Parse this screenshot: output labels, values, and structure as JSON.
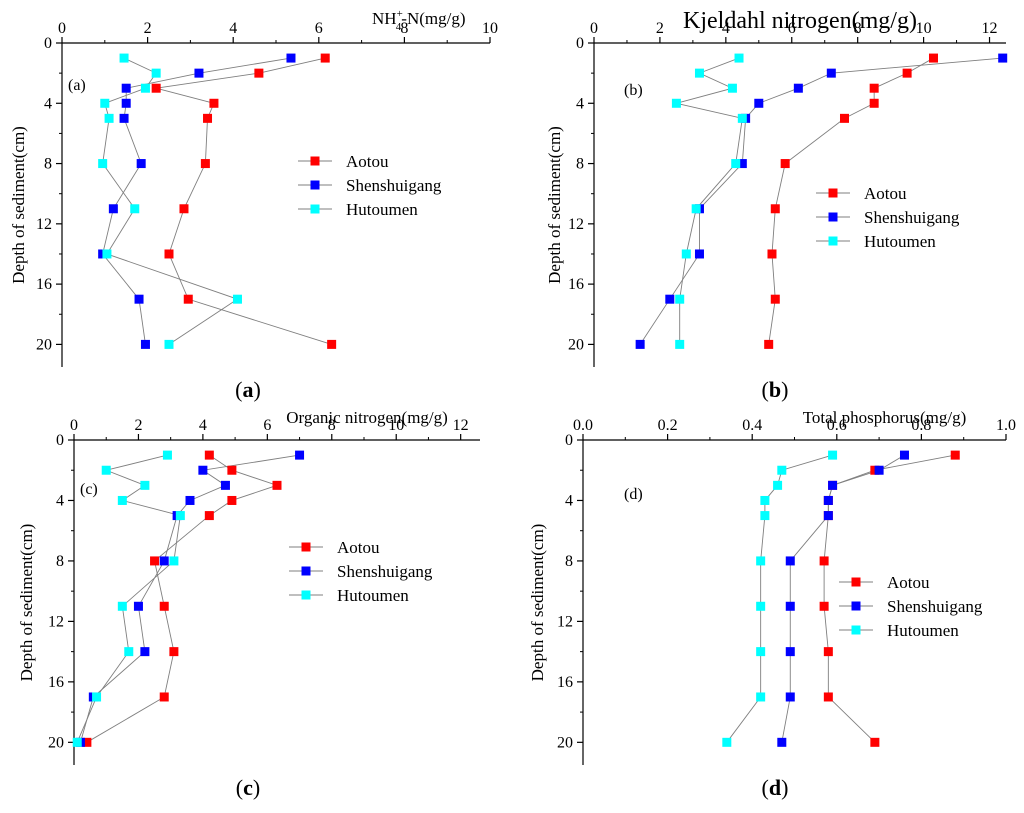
{
  "colors": {
    "Aotou": "#ff0000",
    "Shenshuigang": "#0000ff",
    "Hutoumen": "#00ffff",
    "axis": "#000000",
    "line": "#7f7f7f"
  },
  "chart_data": [
    {
      "type": "scatter",
      "panel": "a",
      "tag": "(a)",
      "caption": "a",
      "title_main": "NH",
      "title_sup": "+",
      "title_sub": "4",
      "title_rest": "-N(mg/g)",
      "xlabel": "",
      "ylabel": "Depth of sediment(cm)",
      "xlim": [
        0,
        10
      ],
      "ylim": [
        0,
        21.5
      ],
      "x_ticks": [
        0,
        2,
        4,
        6,
        8,
        10
      ],
      "y_ticks": [
        0,
        4,
        8,
        12,
        16,
        20
      ],
      "legend_position": "center-right",
      "series": [
        {
          "name": "Aotou",
          "points": [
            [
              6.15,
              1
            ],
            [
              4.6,
              2
            ],
            [
              2.2,
              3
            ],
            [
              3.55,
              4
            ],
            [
              3.4,
              5
            ],
            [
              3.35,
              8
            ],
            [
              2.85,
              11
            ],
            [
              2.5,
              14
            ],
            [
              2.95,
              17
            ],
            [
              6.3,
              20
            ]
          ]
        },
        {
          "name": "Shenshuigang",
          "points": [
            [
              5.35,
              1
            ],
            [
              3.2,
              2
            ],
            [
              1.5,
              3
            ],
            [
              1.5,
              4
            ],
            [
              1.45,
              5
            ],
            [
              1.85,
              8
            ],
            [
              1.2,
              11
            ],
            [
              0.95,
              14
            ],
            [
              1.8,
              17
            ],
            [
              1.95,
              20
            ]
          ]
        },
        {
          "name": "Hutoumen",
          "points": [
            [
              1.45,
              1
            ],
            [
              2.2,
              2
            ],
            [
              1.95,
              3
            ],
            [
              1.0,
              4
            ],
            [
              1.1,
              5
            ],
            [
              0.95,
              8
            ],
            [
              1.7,
              11
            ],
            [
              1.05,
              14
            ],
            [
              4.1,
              17
            ],
            [
              2.5,
              20
            ]
          ]
        }
      ]
    },
    {
      "type": "scatter",
      "panel": "b",
      "tag": "(b)",
      "caption": "b",
      "title_main": "Kjeldahl nitrogen(mg/g)",
      "xlabel": "",
      "ylabel": "Depth of sediment(cm)",
      "xlim": [
        0,
        12.5
      ],
      "ylim": [
        0,
        21.5
      ],
      "x_ticks": [
        0,
        2,
        4,
        6,
        8,
        10,
        12
      ],
      "y_ticks": [
        0,
        4,
        8,
        12,
        16,
        20
      ],
      "legend_position": "center-right",
      "series": [
        {
          "name": "Aotou",
          "points": [
            [
              10.3,
              1
            ],
            [
              9.5,
              2
            ],
            [
              8.5,
              3
            ],
            [
              8.5,
              4
            ],
            [
              7.6,
              5
            ],
            [
              5.8,
              8
            ],
            [
              5.5,
              11
            ],
            [
              5.4,
              14
            ],
            [
              5.5,
              17
            ],
            [
              5.3,
              20
            ]
          ]
        },
        {
          "name": "Shenshuigang",
          "points": [
            [
              12.4,
              1
            ],
            [
              7.2,
              2
            ],
            [
              6.2,
              3
            ],
            [
              5.0,
              4
            ],
            [
              4.6,
              5
            ],
            [
              4.5,
              8
            ],
            [
              3.2,
              11
            ],
            [
              3.2,
              14
            ],
            [
              2.3,
              17
            ],
            [
              1.4,
              20
            ]
          ]
        },
        {
          "name": "Hutoumen",
          "points": [
            [
              4.4,
              1
            ],
            [
              3.2,
              2
            ],
            [
              4.2,
              3
            ],
            [
              2.5,
              4
            ],
            [
              4.5,
              5
            ],
            [
              4.3,
              8
            ],
            [
              3.1,
              11
            ],
            [
              2.8,
              14
            ],
            [
              2.6,
              17
            ],
            [
              2.6,
              20
            ]
          ]
        }
      ]
    },
    {
      "type": "scatter",
      "panel": "c",
      "tag": "(c)",
      "caption": "c",
      "title_main": "Organic nitrogen(mg/g)",
      "xlabel": "",
      "ylabel": "Depth of sediment(cm)",
      "xlim": [
        0,
        12.6
      ],
      "ylim": [
        0,
        21.5
      ],
      "x_ticks": [
        0,
        2,
        4,
        6,
        8,
        10,
        12
      ],
      "y_ticks": [
        0,
        4,
        8,
        12,
        16,
        20
      ],
      "legend_position": "center-right",
      "series": [
        {
          "name": "Aotou",
          "points": [
            [
              4.2,
              1
            ],
            [
              4.9,
              2
            ],
            [
              6.3,
              3
            ],
            [
              4.9,
              4
            ],
            [
              4.2,
              5
            ],
            [
              2.5,
              8
            ],
            [
              2.8,
              11
            ],
            [
              3.1,
              14
            ],
            [
              2.8,
              17
            ],
            [
              0.4,
              20
            ]
          ]
        },
        {
          "name": "Shenshuigang",
          "points": [
            [
              7.0,
              1
            ],
            [
              4.0,
              2
            ],
            [
              4.7,
              3
            ],
            [
              3.6,
              4
            ],
            [
              3.2,
              5
            ],
            [
              2.8,
              8
            ],
            [
              2.0,
              11
            ],
            [
              2.2,
              14
            ],
            [
              0.6,
              17
            ],
            [
              0.2,
              20
            ]
          ]
        },
        {
          "name": "Hutoumen",
          "points": [
            [
              2.9,
              1
            ],
            [
              1.0,
              2
            ],
            [
              2.2,
              3
            ],
            [
              1.5,
              4
            ],
            [
              3.3,
              5
            ],
            [
              3.1,
              8
            ],
            [
              1.5,
              11
            ],
            [
              1.7,
              14
            ],
            [
              0.7,
              17
            ],
            [
              0.1,
              20
            ]
          ]
        }
      ]
    },
    {
      "type": "scatter",
      "panel": "d",
      "tag": "(d)",
      "caption": "d",
      "title_main": "Total phosphorus(mg/g)",
      "xlabel": "",
      "ylabel": "Depth of sediment(cm)",
      "xlim": [
        0,
        1.0
      ],
      "ylim": [
        0,
        21.5
      ],
      "x_ticks": [
        "0.0",
        "0.2",
        "0.4",
        "0.6",
        "0.8",
        "1.0"
      ],
      "y_ticks": [
        0,
        4,
        8,
        12,
        16,
        20
      ],
      "legend_position": "center-right",
      "series": [
        {
          "name": "Aotou",
          "points": [
            [
              0.88,
              1
            ],
            [
              0.69,
              2
            ],
            [
              0.59,
              3
            ],
            [
              0.58,
              4
            ],
            [
              0.58,
              5
            ],
            [
              0.57,
              8
            ],
            [
              0.57,
              11
            ],
            [
              0.58,
              14
            ],
            [
              0.58,
              17
            ],
            [
              0.69,
              20
            ]
          ]
        },
        {
          "name": "Shenshuigang",
          "points": [
            [
              0.76,
              1
            ],
            [
              0.7,
              2
            ],
            [
              0.59,
              3
            ],
            [
              0.58,
              4
            ],
            [
              0.58,
              5
            ],
            [
              0.49,
              8
            ],
            [
              0.49,
              11
            ],
            [
              0.49,
              14
            ],
            [
              0.49,
              17
            ],
            [
              0.47,
              20
            ]
          ]
        },
        {
          "name": "Hutoumen",
          "points": [
            [
              0.59,
              1
            ],
            [
              0.47,
              2
            ],
            [
              0.46,
              3
            ],
            [
              0.43,
              4
            ],
            [
              0.43,
              5
            ],
            [
              0.42,
              8
            ],
            [
              0.42,
              11
            ],
            [
              0.42,
              14
            ],
            [
              0.42,
              17
            ],
            [
              0.34,
              20
            ]
          ]
        }
      ]
    }
  ]
}
